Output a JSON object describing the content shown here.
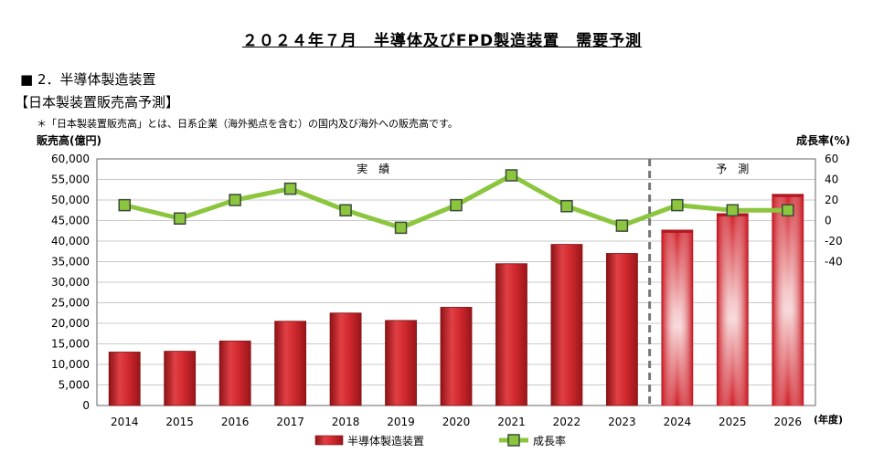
{
  "page": {
    "title": "２０２４年７月　半導体及びFPD製造装置　需要予測",
    "section": "■ 2．半導体製造装置",
    "subsection": "【日本製装置販売高予測】",
    "note": "＊「日本製装置販売高」とは、日系企業（海外拠点を含む）の国内及び海外への販売高です。"
  },
  "colors": {
    "bar_actual": "#c8262a",
    "bar_forecast": "#d8202a",
    "line": "#8cc63f",
    "marker": "#8cc63f",
    "marker_border": "#3c4a3a",
    "divider": "#777777"
  },
  "chart_data": {
    "type": "bar",
    "x": [
      "2014",
      "2015",
      "2016",
      "2017",
      "2018",
      "2019",
      "2020",
      "2021",
      "2022",
      "2023",
      "2024",
      "2025",
      "2026"
    ],
    "x_unit": "(年度)",
    "forecast_start": "2024",
    "actual_label": "実　績",
    "forecast_label": "予　測",
    "y_left": {
      "label": "販売高(億円)",
      "range": [
        0,
        60000
      ],
      "ticks": [
        "0",
        "5,000",
        "10,000",
        "15,000",
        "20,000",
        "25,000",
        "30,000",
        "35,000",
        "40,000",
        "45,000",
        "50,000",
        "55,000",
        "60,000"
      ]
    },
    "y_right": {
      "label": "成長率(%)",
      "range": [
        -180,
        60
      ],
      "ticks": [
        "60",
        "40",
        "20",
        "0",
        "-20",
        "-40"
      ]
    },
    "series": [
      {
        "name": "半導体製造装置",
        "type": "bar",
        "axis": "left",
        "values": [
          13000,
          13200,
          15700,
          20500,
          22500,
          20700,
          23900,
          34500,
          39200,
          37000,
          42700,
          46700,
          51400
        ]
      },
      {
        "name": "成長率",
        "type": "line",
        "axis": "right",
        "values": [
          15,
          2,
          20,
          31,
          10,
          -7,
          15,
          44,
          14,
          -5,
          15,
          10,
          10
        ]
      }
    ],
    "legend_position": "bottom"
  }
}
